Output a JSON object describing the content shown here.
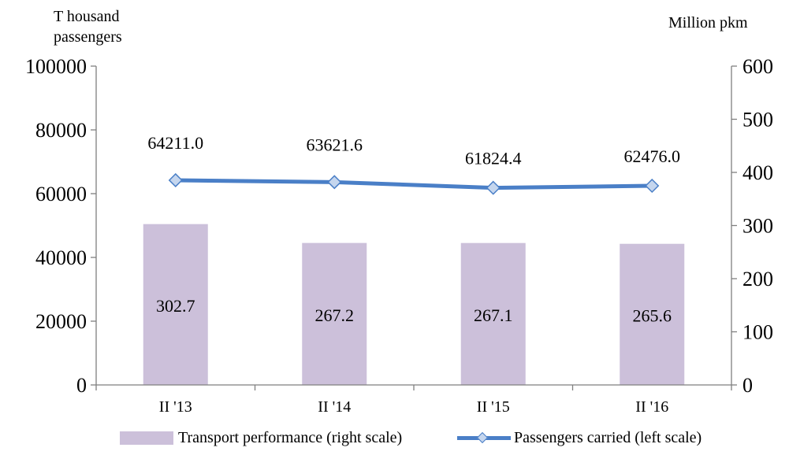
{
  "chart_data": {
    "type": "bar",
    "categories": [
      "II '13",
      "II '14",
      "II '15",
      "II '16"
    ],
    "series": [
      {
        "name": "Transport performance (right scale)",
        "kind": "bar",
        "axis": "right",
        "color": "#ccc0da",
        "values": [
          302.7,
          267.2,
          267.1,
          265.6
        ],
        "labels": [
          "302.7",
          "267.2",
          "267.1",
          "265.6"
        ]
      },
      {
        "name": "Passengers carried (left scale)",
        "kind": "line",
        "axis": "left",
        "color": "#4a7fc7",
        "values": [
          64211.0,
          63621.6,
          61824.4,
          62476.0
        ],
        "labels": [
          "64211.0",
          "63621.6",
          "61824.4",
          "62476.0"
        ]
      }
    ],
    "ylabel_left": "Thousand passengers",
    "ylabel_left_lines": [
      "T housand",
      "passengers"
    ],
    "ylabel_right": "Million pkm",
    "ylim_left": [
      0,
      100000
    ],
    "ylim_right": [
      0,
      600
    ],
    "yticks_left": [
      "0",
      "20000",
      "40000",
      "60000",
      "80000",
      "100000"
    ],
    "yticks_right": [
      "0",
      "100",
      "200",
      "300",
      "400",
      "500",
      "600"
    ],
    "grid": false,
    "legend_position": "bottom"
  }
}
